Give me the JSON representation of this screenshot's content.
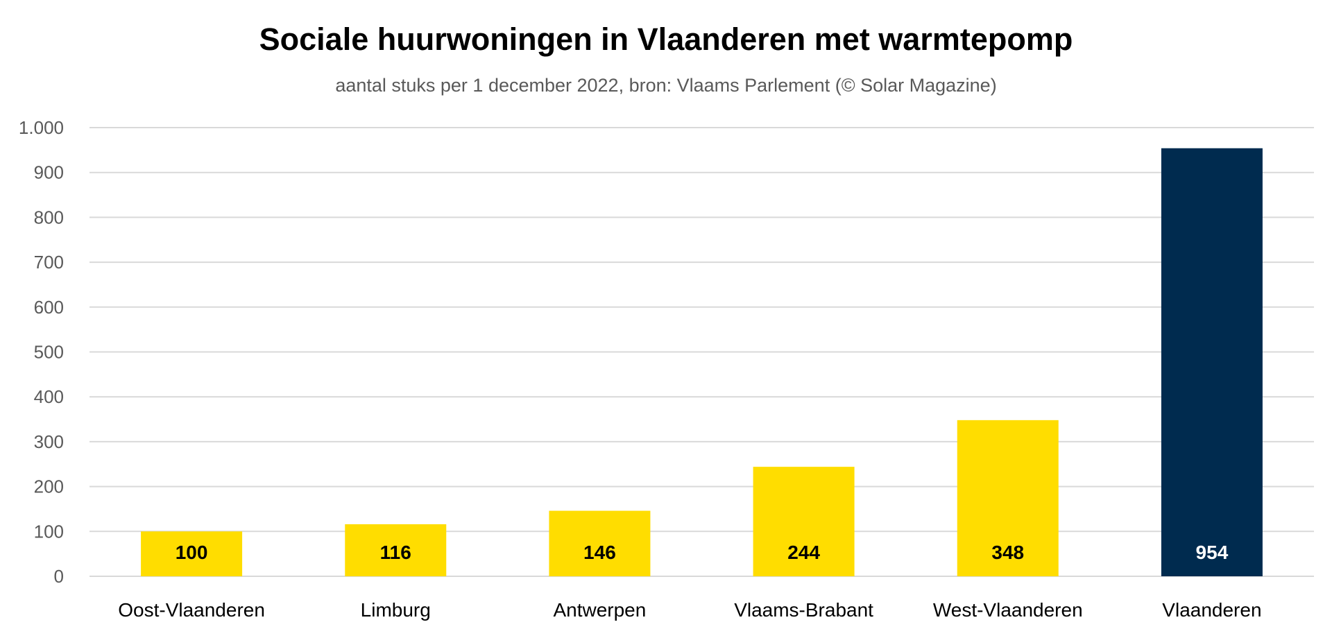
{
  "chart_data": {
    "type": "bar",
    "title": "Sociale huurwoningen in Vlaanderen met warmtepomp",
    "subtitle": "aantal stuks per 1 december 2022, bron: Vlaams Parlement (© Solar Magazine)",
    "xlabel": "",
    "ylabel": "",
    "categories": [
      "Oost-Vlaanderen",
      "Limburg",
      "Antwerpen",
      "Vlaams-Brabant",
      "West-Vlaanderen",
      "Vlaanderen"
    ],
    "values": [
      100,
      116,
      146,
      244,
      348,
      954
    ],
    "data_labels": [
      "100",
      "116",
      "146",
      "244",
      "348",
      "954"
    ],
    "ylim": [
      0,
      1000
    ],
    "yticks": [
      0,
      100,
      200,
      300,
      400,
      500,
      600,
      700,
      800,
      900,
      1000
    ],
    "ytick_labels": [
      "0",
      "100",
      "200",
      "300",
      "400",
      "500",
      "600",
      "700",
      "800",
      "900",
      "1.000"
    ],
    "grid": true,
    "legend": "none",
    "colors": {
      "regional": "#FFDD00",
      "total": "#002B4F",
      "grid": "#D9D9D9",
      "label_dark": "#000000",
      "label_light": "#FFFFFF"
    }
  }
}
